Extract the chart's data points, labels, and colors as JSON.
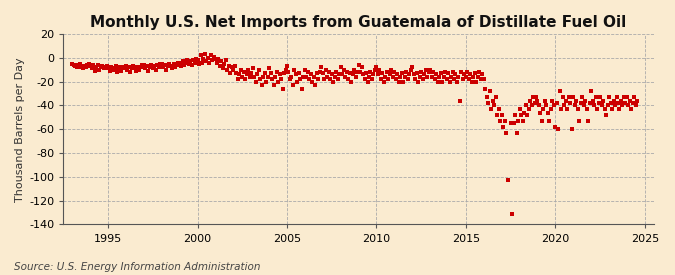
{
  "title": "Monthly U.S. Net Imports from Guatemala of Distillate Fuel Oil",
  "ylabel": "Thousand Barrels per Day",
  "source": "Source: U.S. Energy Information Administration",
  "ylim": [
    -140,
    20
  ],
  "yticks": [
    20,
    0,
    -20,
    -40,
    -60,
    -80,
    -100,
    -120,
    -140
  ],
  "xlim_start": 1992.5,
  "xlim_end": 2025.5,
  "xticks": [
    1995,
    2000,
    2005,
    2010,
    2015,
    2020,
    2025
  ],
  "marker_color": "#cc0000",
  "background_color": "#faebd0",
  "plot_bg_color": "#faebd0",
  "grid_color": "#aaaaaa",
  "title_fontsize": 11,
  "label_fontsize": 8,
  "tick_fontsize": 8,
  "source_fontsize": 7.5,
  "data": [
    [
      1993.0,
      -5
    ],
    [
      1993.083,
      -6
    ],
    [
      1993.167,
      -7
    ],
    [
      1993.25,
      -8
    ],
    [
      1993.333,
      -6
    ],
    [
      1993.417,
      -5
    ],
    [
      1993.5,
      -8
    ],
    [
      1993.583,
      -9
    ],
    [
      1993.667,
      -7
    ],
    [
      1993.75,
      -8
    ],
    [
      1993.833,
      -6
    ],
    [
      1993.917,
      -5
    ],
    [
      1994.0,
      -7
    ],
    [
      1994.083,
      -9
    ],
    [
      1994.167,
      -6
    ],
    [
      1994.25,
      -11
    ],
    [
      1994.333,
      -8
    ],
    [
      1994.417,
      -6
    ],
    [
      1994.5,
      -10
    ],
    [
      1994.583,
      -8
    ],
    [
      1994.667,
      -7
    ],
    [
      1994.75,
      -9
    ],
    [
      1994.833,
      -8
    ],
    [
      1994.917,
      -7
    ],
    [
      1995.0,
      -9
    ],
    [
      1995.083,
      -11
    ],
    [
      1995.167,
      -8
    ],
    [
      1995.25,
      -10
    ],
    [
      1995.333,
      -9
    ],
    [
      1995.417,
      -7
    ],
    [
      1995.5,
      -12
    ],
    [
      1995.583,
      -9
    ],
    [
      1995.667,
      -8
    ],
    [
      1995.75,
      -11
    ],
    [
      1995.833,
      -9
    ],
    [
      1995.917,
      -8
    ],
    [
      1996.0,
      -7
    ],
    [
      1996.083,
      -10
    ],
    [
      1996.167,
      -8
    ],
    [
      1996.25,
      -12
    ],
    [
      1996.333,
      -9
    ],
    [
      1996.417,
      -7
    ],
    [
      1996.5,
      -8
    ],
    [
      1996.583,
      -11
    ],
    [
      1996.667,
      -8
    ],
    [
      1996.75,
      -10
    ],
    [
      1996.833,
      -8
    ],
    [
      1996.917,
      -6
    ],
    [
      1997.0,
      -6
    ],
    [
      1997.083,
      -9
    ],
    [
      1997.167,
      -7
    ],
    [
      1997.25,
      -11
    ],
    [
      1997.333,
      -8
    ],
    [
      1997.417,
      -6
    ],
    [
      1997.5,
      -9
    ],
    [
      1997.583,
      -7
    ],
    [
      1997.667,
      -10
    ],
    [
      1997.75,
      -6
    ],
    [
      1997.833,
      -8
    ],
    [
      1997.917,
      -5
    ],
    [
      1998.0,
      -5
    ],
    [
      1998.083,
      -8
    ],
    [
      1998.167,
      -6
    ],
    [
      1998.25,
      -10
    ],
    [
      1998.333,
      -7
    ],
    [
      1998.417,
      -5
    ],
    [
      1998.5,
      -7
    ],
    [
      1998.583,
      -9
    ],
    [
      1998.667,
      -5
    ],
    [
      1998.75,
      -8
    ],
    [
      1998.833,
      -6
    ],
    [
      1998.917,
      -4
    ],
    [
      1999.0,
      -4
    ],
    [
      1999.083,
      -7
    ],
    [
      1999.167,
      -3
    ],
    [
      1999.25,
      -6
    ],
    [
      1999.333,
      -4
    ],
    [
      1999.417,
      -2
    ],
    [
      1999.5,
      -5
    ],
    [
      1999.583,
      -3
    ],
    [
      1999.667,
      -6
    ],
    [
      1999.75,
      -2
    ],
    [
      1999.833,
      -4
    ],
    [
      1999.917,
      -1
    ],
    [
      2000.0,
      -2
    ],
    [
      2000.083,
      -5
    ],
    [
      2000.167,
      2
    ],
    [
      2000.25,
      -4
    ],
    [
      2000.333,
      -1
    ],
    [
      2000.417,
      3
    ],
    [
      2000.5,
      -3
    ],
    [
      2000.583,
      0
    ],
    [
      2000.667,
      -4
    ],
    [
      2000.75,
      2
    ],
    [
      2000.833,
      -2
    ],
    [
      2000.917,
      1
    ],
    [
      2001.0,
      -1
    ],
    [
      2001.083,
      -4
    ],
    [
      2001.167,
      -1
    ],
    [
      2001.25,
      -7
    ],
    [
      2001.333,
      -3
    ],
    [
      2001.417,
      -9
    ],
    [
      2001.5,
      -5
    ],
    [
      2001.583,
      -2
    ],
    [
      2001.667,
      -10
    ],
    [
      2001.75,
      -7
    ],
    [
      2001.833,
      -13
    ],
    [
      2001.917,
      -8
    ],
    [
      2002.0,
      -10
    ],
    [
      2002.083,
      -7
    ],
    [
      2002.167,
      -13
    ],
    [
      2002.25,
      -18
    ],
    [
      2002.333,
      -14
    ],
    [
      2002.417,
      -10
    ],
    [
      2002.5,
      -16
    ],
    [
      2002.583,
      -12
    ],
    [
      2002.667,
      -18
    ],
    [
      2002.75,
      -14
    ],
    [
      2002.833,
      -10
    ],
    [
      2002.917,
      -16
    ],
    [
      2003.0,
      -13
    ],
    [
      2003.083,
      -9
    ],
    [
      2003.167,
      -16
    ],
    [
      2003.25,
      -20
    ],
    [
      2003.333,
      -14
    ],
    [
      2003.417,
      -10
    ],
    [
      2003.5,
      -18
    ],
    [
      2003.583,
      -23
    ],
    [
      2003.667,
      -16
    ],
    [
      2003.75,
      -13
    ],
    [
      2003.833,
      -20
    ],
    [
      2003.917,
      -16
    ],
    [
      2004.0,
      -9
    ],
    [
      2004.083,
      -13
    ],
    [
      2004.167,
      -18
    ],
    [
      2004.25,
      -23
    ],
    [
      2004.333,
      -16
    ],
    [
      2004.417,
      -12
    ],
    [
      2004.5,
      -20
    ],
    [
      2004.583,
      -14
    ],
    [
      2004.667,
      -18
    ],
    [
      2004.75,
      -26
    ],
    [
      2004.833,
      -13
    ],
    [
      2004.917,
      -10
    ],
    [
      2005.0,
      -7
    ],
    [
      2005.083,
      -12
    ],
    [
      2005.167,
      -18
    ],
    [
      2005.25,
      -16
    ],
    [
      2005.333,
      -23
    ],
    [
      2005.417,
      -10
    ],
    [
      2005.5,
      -14
    ],
    [
      2005.583,
      -20
    ],
    [
      2005.667,
      -13
    ],
    [
      2005.75,
      -18
    ],
    [
      2005.833,
      -26
    ],
    [
      2005.917,
      -16
    ],
    [
      2006.0,
      -10
    ],
    [
      2006.083,
      -16
    ],
    [
      2006.167,
      -12
    ],
    [
      2006.25,
      -18
    ],
    [
      2006.333,
      -14
    ],
    [
      2006.417,
      -20
    ],
    [
      2006.5,
      -16
    ],
    [
      2006.583,
      -23
    ],
    [
      2006.667,
      -13
    ],
    [
      2006.75,
      -18
    ],
    [
      2006.833,
      -12
    ],
    [
      2006.917,
      -8
    ],
    [
      2007.0,
      -13
    ],
    [
      2007.083,
      -18
    ],
    [
      2007.167,
      -10
    ],
    [
      2007.25,
      -16
    ],
    [
      2007.333,
      -12
    ],
    [
      2007.417,
      -18
    ],
    [
      2007.5,
      -14
    ],
    [
      2007.583,
      -20
    ],
    [
      2007.667,
      -16
    ],
    [
      2007.75,
      -12
    ],
    [
      2007.833,
      -18
    ],
    [
      2007.917,
      -14
    ],
    [
      2008.0,
      -8
    ],
    [
      2008.083,
      -14
    ],
    [
      2008.167,
      -10
    ],
    [
      2008.25,
      -16
    ],
    [
      2008.333,
      -12
    ],
    [
      2008.417,
      -18
    ],
    [
      2008.5,
      -13
    ],
    [
      2008.583,
      -20
    ],
    [
      2008.667,
      -14
    ],
    [
      2008.75,
      -10
    ],
    [
      2008.833,
      -16
    ],
    [
      2008.917,
      -12
    ],
    [
      2009.0,
      -6
    ],
    [
      2009.083,
      -12
    ],
    [
      2009.167,
      -8
    ],
    [
      2009.25,
      -14
    ],
    [
      2009.333,
      -18
    ],
    [
      2009.417,
      -13
    ],
    [
      2009.5,
      -20
    ],
    [
      2009.583,
      -16
    ],
    [
      2009.667,
      -12
    ],
    [
      2009.75,
      -18
    ],
    [
      2009.833,
      -14
    ],
    [
      2009.917,
      -10
    ],
    [
      2010.0,
      -8
    ],
    [
      2010.083,
      -14
    ],
    [
      2010.167,
      -10
    ],
    [
      2010.25,
      -18
    ],
    [
      2010.333,
      -13
    ],
    [
      2010.417,
      -20
    ],
    [
      2010.5,
      -16
    ],
    [
      2010.583,
      -12
    ],
    [
      2010.667,
      -18
    ],
    [
      2010.75,
      -14
    ],
    [
      2010.833,
      -10
    ],
    [
      2010.917,
      -16
    ],
    [
      2011.0,
      -12
    ],
    [
      2011.083,
      -18
    ],
    [
      2011.167,
      -14
    ],
    [
      2011.25,
      -20
    ],
    [
      2011.333,
      -16
    ],
    [
      2011.417,
      -13
    ],
    [
      2011.5,
      -20
    ],
    [
      2011.583,
      -16
    ],
    [
      2011.667,
      -12
    ],
    [
      2011.75,
      -18
    ],
    [
      2011.833,
      -14
    ],
    [
      2011.917,
      -10
    ],
    [
      2012.0,
      -8
    ],
    [
      2012.083,
      -14
    ],
    [
      2012.167,
      -18
    ],
    [
      2012.25,
      -13
    ],
    [
      2012.333,
      -20
    ],
    [
      2012.417,
      -16
    ],
    [
      2012.5,
      -12
    ],
    [
      2012.583,
      -18
    ],
    [
      2012.667,
      -14
    ],
    [
      2012.75,
      -10
    ],
    [
      2012.833,
      -16
    ],
    [
      2012.917,
      -12
    ],
    [
      2013.0,
      -10
    ],
    [
      2013.083,
      -16
    ],
    [
      2013.167,
      -12
    ],
    [
      2013.25,
      -18
    ],
    [
      2013.333,
      -14
    ],
    [
      2013.417,
      -20
    ],
    [
      2013.5,
      -16
    ],
    [
      2013.583,
      -13
    ],
    [
      2013.667,
      -20
    ],
    [
      2013.75,
      -16
    ],
    [
      2013.833,
      -12
    ],
    [
      2013.917,
      -18
    ],
    [
      2014.0,
      -13
    ],
    [
      2014.083,
      -20
    ],
    [
      2014.167,
      -16
    ],
    [
      2014.25,
      -12
    ],
    [
      2014.333,
      -18
    ],
    [
      2014.417,
      -14
    ],
    [
      2014.5,
      -20
    ],
    [
      2014.583,
      -16
    ],
    [
      2014.667,
      -36
    ],
    [
      2014.75,
      -12
    ],
    [
      2014.833,
      -18
    ],
    [
      2014.917,
      -14
    ],
    [
      2015.0,
      -16
    ],
    [
      2015.083,
      -12
    ],
    [
      2015.167,
      -18
    ],
    [
      2015.25,
      -14
    ],
    [
      2015.333,
      -20
    ],
    [
      2015.417,
      -16
    ],
    [
      2015.5,
      -13
    ],
    [
      2015.583,
      -20
    ],
    [
      2015.667,
      -16
    ],
    [
      2015.75,
      -12
    ],
    [
      2015.833,
      -18
    ],
    [
      2015.917,
      -14
    ],
    [
      2016.0,
      -18
    ],
    [
      2016.083,
      -26
    ],
    [
      2016.167,
      -33
    ],
    [
      2016.25,
      -38
    ],
    [
      2016.333,
      -28
    ],
    [
      2016.417,
      -43
    ],
    [
      2016.5,
      -36
    ],
    [
      2016.583,
      -40
    ],
    [
      2016.667,
      -33
    ],
    [
      2016.75,
      -48
    ],
    [
      2016.833,
      -43
    ],
    [
      2016.917,
      -53
    ],
    [
      2017.0,
      -48
    ],
    [
      2017.083,
      -58
    ],
    [
      2017.167,
      -53
    ],
    [
      2017.25,
      -63
    ],
    [
      2017.333,
      -103
    ],
    [
      2017.5,
      -55
    ],
    [
      2017.583,
      -131
    ],
    [
      2017.667,
      -55
    ],
    [
      2017.75,
      -48
    ],
    [
      2017.833,
      -63
    ],
    [
      2017.917,
      -53
    ],
    [
      2018.0,
      -43
    ],
    [
      2018.083,
      -48
    ],
    [
      2018.167,
      -53
    ],
    [
      2018.25,
      -46
    ],
    [
      2018.333,
      -40
    ],
    [
      2018.417,
      -48
    ],
    [
      2018.5,
      -43
    ],
    [
      2018.583,
      -36
    ],
    [
      2018.667,
      -40
    ],
    [
      2018.75,
      -33
    ],
    [
      2018.833,
      -38
    ],
    [
      2018.917,
      -33
    ],
    [
      2019.0,
      -36
    ],
    [
      2019.083,
      -40
    ],
    [
      2019.167,
      -46
    ],
    [
      2019.25,
      -53
    ],
    [
      2019.333,
      -43
    ],
    [
      2019.417,
      -36
    ],
    [
      2019.5,
      -40
    ],
    [
      2019.583,
      -46
    ],
    [
      2019.667,
      -53
    ],
    [
      2019.75,
      -43
    ],
    [
      2019.833,
      -36
    ],
    [
      2019.917,
      -40
    ],
    [
      2020.0,
      -58
    ],
    [
      2020.083,
      -38
    ],
    [
      2020.167,
      -60
    ],
    [
      2020.25,
      -28
    ],
    [
      2020.333,
      -43
    ],
    [
      2020.417,
      -33
    ],
    [
      2020.5,
      -40
    ],
    [
      2020.583,
      -36
    ],
    [
      2020.667,
      -43
    ],
    [
      2020.75,
      -33
    ],
    [
      2020.833,
      -38
    ],
    [
      2020.917,
      -60
    ],
    [
      2021.0,
      -33
    ],
    [
      2021.083,
      -40
    ],
    [
      2021.167,
      -36
    ],
    [
      2021.25,
      -43
    ],
    [
      2021.333,
      -53
    ],
    [
      2021.417,
      -38
    ],
    [
      2021.5,
      -33
    ],
    [
      2021.583,
      -40
    ],
    [
      2021.667,
      -36
    ],
    [
      2021.75,
      -43
    ],
    [
      2021.833,
      -53
    ],
    [
      2021.917,
      -38
    ],
    [
      2022.0,
      -28
    ],
    [
      2022.083,
      -36
    ],
    [
      2022.167,
      -40
    ],
    [
      2022.25,
      -33
    ],
    [
      2022.333,
      -43
    ],
    [
      2022.417,
      -38
    ],
    [
      2022.5,
      -33
    ],
    [
      2022.583,
      -40
    ],
    [
      2022.667,
      -36
    ],
    [
      2022.75,
      -43
    ],
    [
      2022.833,
      -48
    ],
    [
      2022.917,
      -40
    ],
    [
      2023.0,
      -33
    ],
    [
      2023.083,
      -38
    ],
    [
      2023.167,
      -43
    ],
    [
      2023.25,
      -36
    ],
    [
      2023.333,
      -40
    ],
    [
      2023.417,
      -33
    ],
    [
      2023.5,
      -38
    ],
    [
      2023.583,
      -43
    ],
    [
      2023.667,
      -36
    ],
    [
      2023.75,
      -40
    ],
    [
      2023.833,
      -33
    ],
    [
      2023.917,
      -38
    ],
    [
      2024.0,
      -33
    ],
    [
      2024.083,
      -40
    ],
    [
      2024.167,
      -36
    ],
    [
      2024.25,
      -43
    ],
    [
      2024.333,
      -38
    ],
    [
      2024.417,
      -33
    ],
    [
      2024.5,
      -40
    ],
    [
      2024.583,
      -36
    ]
  ]
}
